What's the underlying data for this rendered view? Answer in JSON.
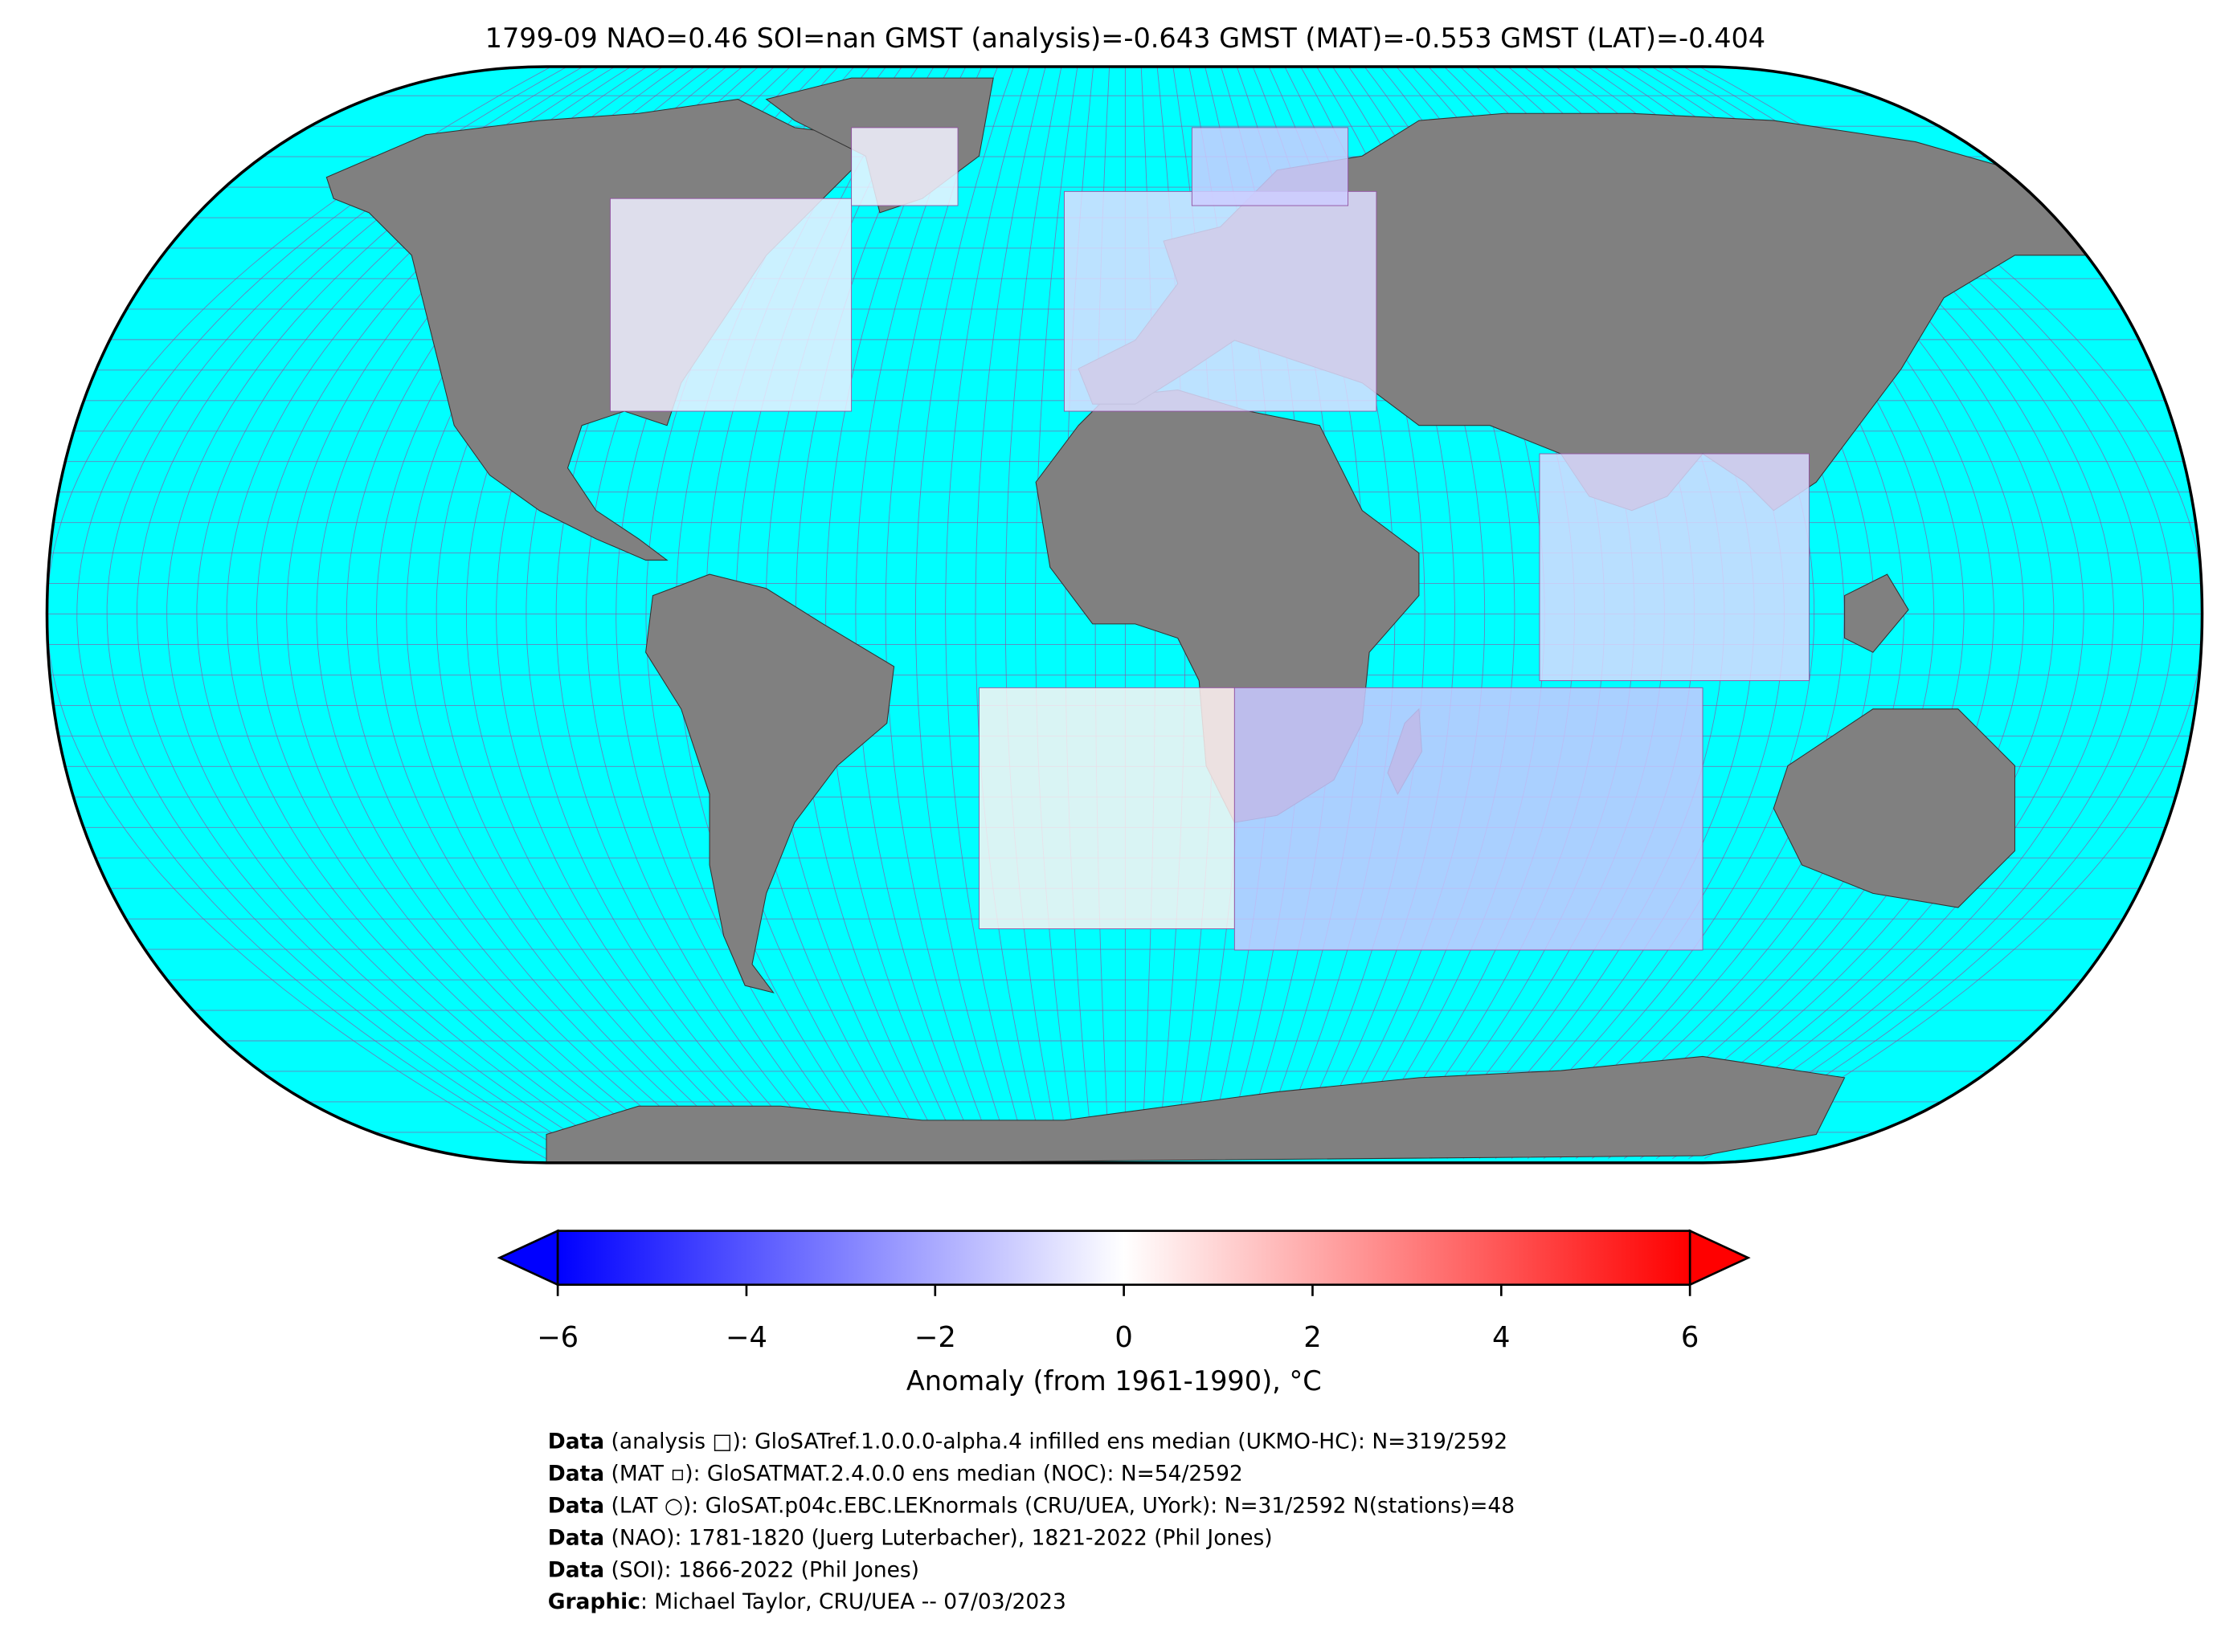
{
  "title": "1799-09 NAO=0.46 SOI=nan GMST (analysis)=-0.643 GMST (MAT)=-0.553 GMST (LAT)=-0.404",
  "anomalies": [
    -0.4,
    -0.3,
    -0.8,
    -1.2,
    -0.9,
    0.3,
    -1.3
  ],
  "colorbar": {
    "label": "Anomaly (from 1961-1990), °C",
    "lim": [
      -6,
      6
    ],
    "ticks": [
      {
        "value": -6,
        "label": "−6"
      },
      {
        "value": -4,
        "label": "−4"
      },
      {
        "value": -2,
        "label": "−2"
      },
      0,
      2,
      4,
      6
    ]
  },
  "footer": [
    {
      "bold": "Data",
      "text": " (analysis □): GloSATref.1.0.0.0-alpha.4 infilled ens median (UKMO-HC): N=319/2592"
    },
    {
      "bold": "Data",
      "text": " (MAT ▫): GloSATMAT.2.4.0.0 ens median (NOC): N=54/2592"
    },
    {
      "bold": "Data",
      "text": " (LAT ○): GloSAT.p04c.EBC.LEKnormals (CRU/UEA, UYork): N=31/2592 N(stations)=48"
    },
    {
      "bold": "Data",
      "text": " (NAO): 1781-1820 (Juerg Luterbacher), 1821-2022 (Phil Jones)"
    },
    {
      "bold": "Data",
      "text": " (SOI): 1866-2022 (Phil Jones)"
    },
    {
      "bold": "Graphic",
      "text": ": Michael Taylor, CRU/UEA -- 07/03/2023"
    }
  ]
}
